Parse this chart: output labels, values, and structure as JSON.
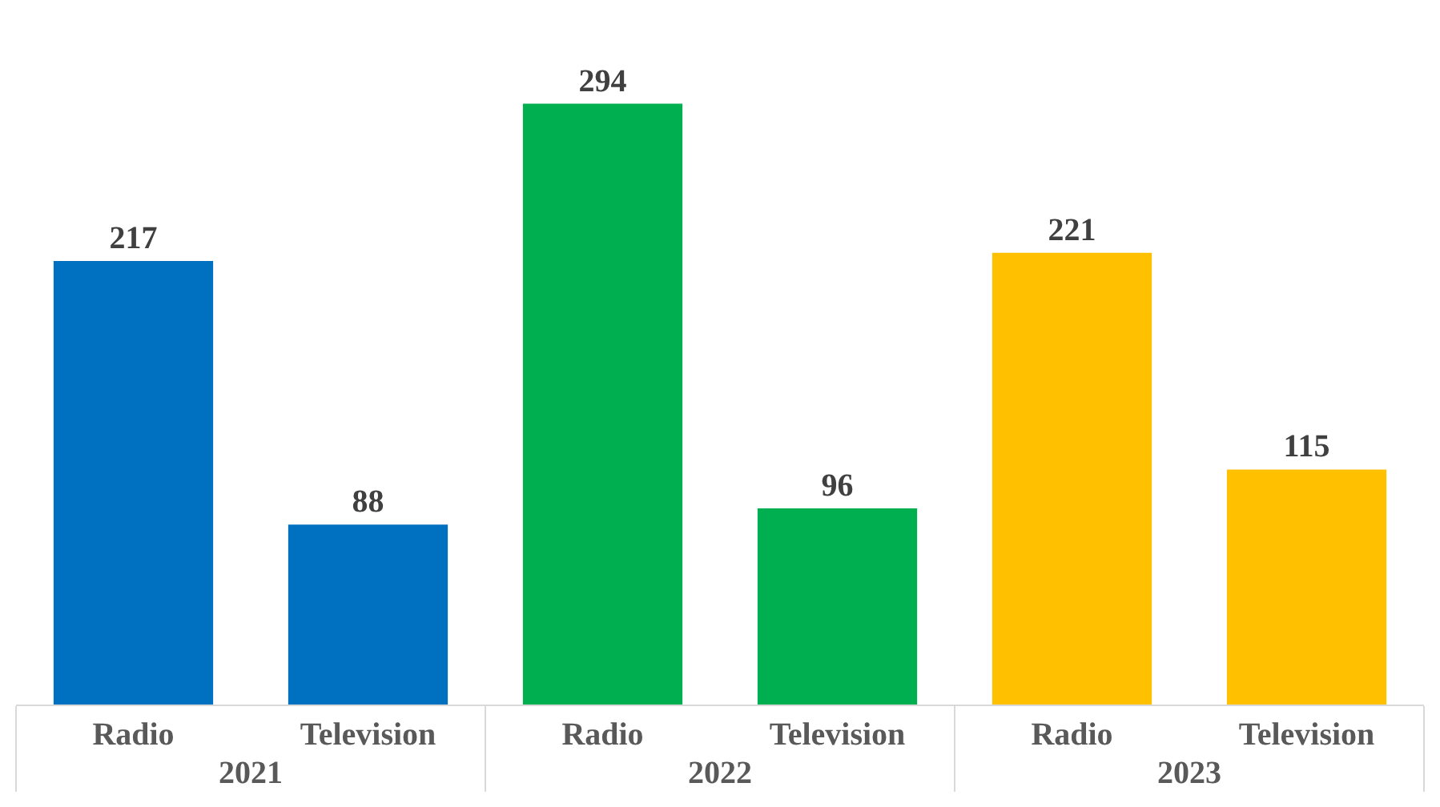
{
  "chart_data": {
    "type": "bar",
    "categories": [
      "Radio",
      "Television",
      "Radio",
      "Television",
      "Radio",
      "Television"
    ],
    "values": [
      217,
      88,
      294,
      96,
      221,
      115
    ],
    "colors": [
      "#0070c0",
      "#0070c0",
      "#00b050",
      "#00b050",
      "#ffc000",
      "#ffc000"
    ],
    "data_labels": true,
    "tick_labels": "x",
    "annotations": [
      "2021",
      "2022",
      "2023"
    ]
  }
}
